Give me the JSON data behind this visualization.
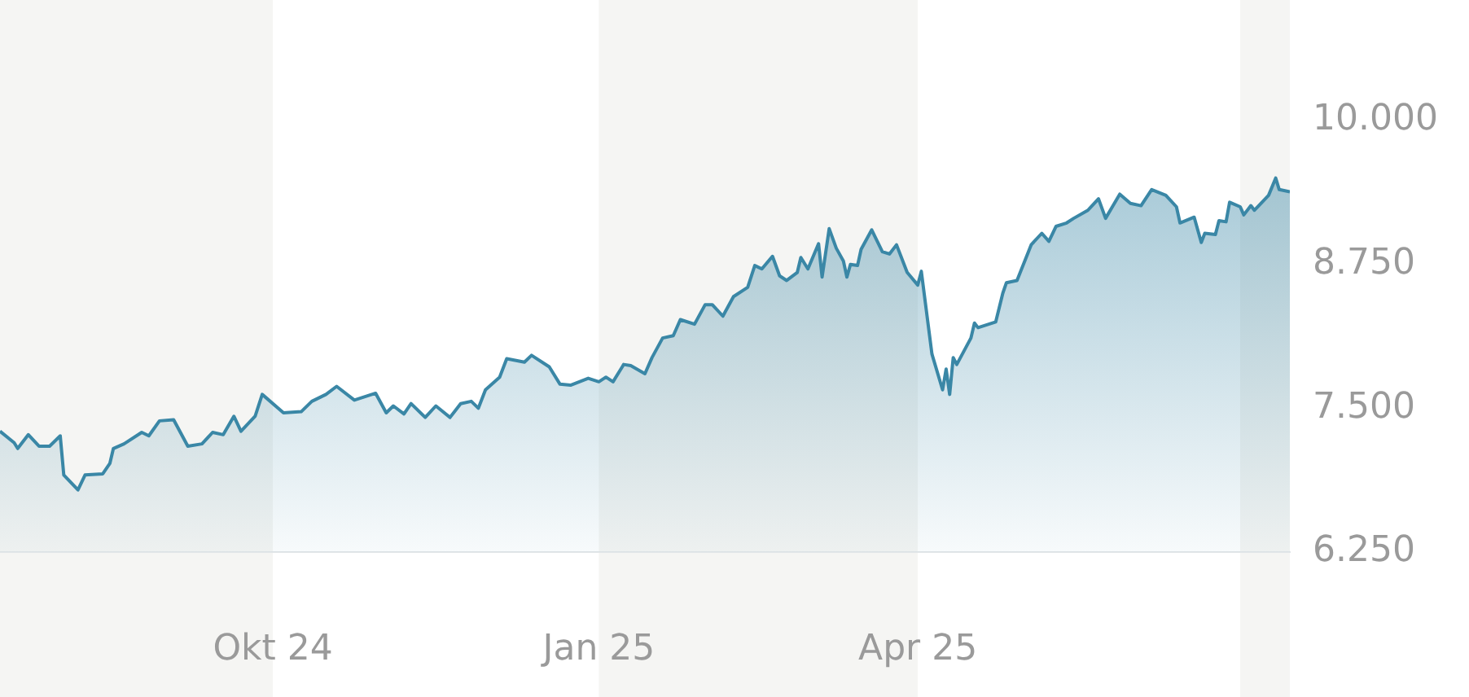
{
  "chart_data": {
    "type": "area",
    "x": [
      "2024-07-16",
      "2024-07-20",
      "2024-07-21",
      "2024-07-24",
      "2024-07-27",
      "2024-07-30",
      "2024-08-02",
      "2024-08-03",
      "2024-08-07",
      "2024-08-09",
      "2024-08-14",
      "2024-08-16",
      "2024-08-17",
      "2024-08-20",
      "2024-08-25",
      "2024-08-27",
      "2024-08-30",
      "2024-09-03",
      "2024-09-07",
      "2024-09-11",
      "2024-09-14",
      "2024-09-17",
      "2024-09-20",
      "2024-09-22",
      "2024-09-26",
      "2024-09-28",
      "2024-10-04",
      "2024-10-09",
      "2024-10-12",
      "2024-10-16",
      "2024-10-19",
      "2024-10-24",
      "2024-10-30",
      "2024-11-02",
      "2024-11-04",
      "2024-11-07",
      "2024-11-09",
      "2024-11-13",
      "2024-11-16",
      "2024-11-20",
      "2024-11-23",
      "2024-11-26",
      "2024-11-28",
      "2024-11-30",
      "2024-12-04",
      "2024-12-06",
      "2024-12-11",
      "2024-12-13",
      "2024-12-18",
      "2024-12-21",
      "2024-12-24",
      "2024-12-29",
      "2025-01-01",
      "2025-01-03",
      "2025-01-05",
      "2025-01-08",
      "2025-01-10",
      "2025-01-14",
      "2025-01-16",
      "2025-01-19",
      "2025-01-22",
      "2025-01-24",
      "2025-01-28",
      "2025-01-31",
      "2025-02-02",
      "2025-02-05",
      "2025-02-08",
      "2025-02-12",
      "2025-02-14",
      "2025-02-16",
      "2025-02-19",
      "2025-02-21",
      "2025-02-23",
      "2025-02-26",
      "2025-02-27",
      "2025-03-01",
      "2025-03-04",
      "2025-03-05",
      "2025-03-07",
      "2025-03-09",
      "2025-03-11",
      "2025-03-12",
      "2025-03-13",
      "2025-03-15",
      "2025-03-16",
      "2025-03-19",
      "2025-03-22",
      "2025-03-24",
      "2025-03-26",
      "2025-03-29",
      "2025-04-01",
      "2025-04-02",
      "2025-04-05",
      "2025-04-08",
      "2025-04-09",
      "2025-04-10",
      "2025-04-11",
      "2025-04-12",
      "2025-04-16",
      "2025-04-17",
      "2025-04-18",
      "2025-04-23",
      "2025-04-25",
      "2025-04-26",
      "2025-04-29",
      "2025-05-03",
      "2025-05-06",
      "2025-05-08",
      "2025-05-10",
      "2025-05-13",
      "2025-05-15",
      "2025-05-19",
      "2025-05-22",
      "2025-05-24",
      "2025-05-28",
      "2025-05-31",
      "2025-06-03",
      "2025-06-06",
      "2025-06-10",
      "2025-06-13",
      "2025-06-14",
      "2025-06-18",
      "2025-06-20",
      "2025-06-21",
      "2025-06-24",
      "2025-06-25",
      "2025-06-27",
      "2025-06-28",
      "2025-07-01",
      "2025-07-02",
      "2025-07-04",
      "2025-07-05",
      "2025-07-09",
      "2025-07-11",
      "2025-07-12",
      "2025-07-15"
    ],
    "series": [
      {
        "color": "#3a87a6",
        "values": [
          7300,
          7200,
          7150,
          7270,
          7170,
          7170,
          7260,
          6920,
          6790,
          6920,
          6930,
          7020,
          7150,
          7190,
          7290,
          7260,
          7390,
          7400,
          7170,
          7190,
          7290,
          7270,
          7430,
          7300,
          7430,
          7620,
          7460,
          7470,
          7560,
          7620,
          7690,
          7570,
          7630,
          7460,
          7520,
          7450,
          7540,
          7420,
          7520,
          7420,
          7540,
          7560,
          7500,
          7660,
          7770,
          7930,
          7900,
          7960,
          7860,
          7710,
          7700,
          7760,
          7730,
          7770,
          7730,
          7880,
          7870,
          7800,
          7940,
          8110,
          8130,
          8270,
          8230,
          8400,
          8400,
          8300,
          8470,
          8550,
          8740,
          8710,
          8820,
          8650,
          8610,
          8680,
          8810,
          8710,
          8930,
          8640,
          9060,
          8890,
          8780,
          8640,
          8750,
          8740,
          8880,
          9050,
          8860,
          8840,
          8920,
          8680,
          8570,
          8690,
          7970,
          7660,
          7840,
          7620,
          7940,
          7880,
          8110,
          8240,
          8200,
          8250,
          8500,
          8590,
          8610,
          8920,
          9020,
          8950,
          9080,
          9110,
          9150,
          9220,
          9320,
          9150,
          9360,
          9280,
          9260,
          9400,
          9350,
          9250,
          9110,
          9160,
          8940,
          9020,
          9010,
          9130,
          9120,
          9290,
          9250,
          9180,
          9260,
          9220,
          9350,
          9500,
          9400,
          9380
        ]
      }
    ],
    "xlim": [
      "2024-07-16",
      "2025-07-15"
    ],
    "xticks": [
      {
        "value": "2024-10-01",
        "label": "Okt 24"
      },
      {
        "value": "2025-01-01",
        "label": "Jan 25"
      },
      {
        "value": "2025-04-01",
        "label": "Apr 25"
      }
    ],
    "ylim": [
      6250,
      10000
    ],
    "yticks": [
      {
        "value": 6250,
        "label": "6.250"
      },
      {
        "value": 7500,
        "label": "7.500"
      },
      {
        "value": 8750,
        "label": "8.750"
      },
      {
        "value": 10000,
        "label": "10.000"
      }
    ],
    "bands": [
      {
        "axis": "x",
        "from": "2024-07-16",
        "to": "2024-10-01",
        "color": "#f5f5f3"
      },
      {
        "axis": "x",
        "from": "2025-01-01",
        "to": "2025-04-01",
        "color": "#f5f5f3"
      },
      {
        "axis": "x",
        "from": "2025-07-01",
        "to": "2025-07-15",
        "color": "#f5f5f3"
      }
    ],
    "grid": false,
    "legend": false
  }
}
